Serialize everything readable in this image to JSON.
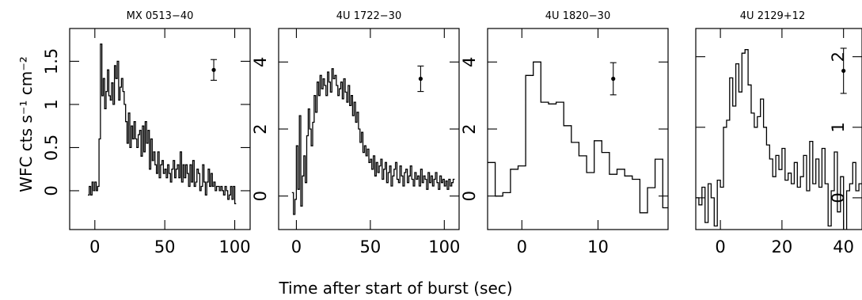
{
  "chart_data": {
    "type": "line",
    "step": true,
    "ylabel": "WFC cts s⁻¹ cm⁻²",
    "xlabel": "Time after start of burst (sec)",
    "panels": [
      {
        "title": "MX 0513−40",
        "xlim": [
          -18,
          111
        ],
        "ylim": [
          -0.45,
          1.88
        ],
        "xticks": [
          0,
          50,
          100
        ],
        "xtick_labels": [
          "0",
          "50",
          "100"
        ],
        "yticks": [
          0,
          0.5,
          1,
          1.5
        ],
        "ytick_labels": [
          "0",
          "0.5",
          "1",
          "1.5"
        ],
        "ytick_side": "left",
        "errbar": {
          "x": 85,
          "y": 1.4,
          "err": 0.12
        },
        "x": [
          -5,
          -4,
          -3,
          -2,
          -1,
          0,
          1,
          2,
          3,
          4,
          5,
          6,
          7,
          8,
          9,
          10,
          11,
          12,
          13,
          14,
          15,
          16,
          17,
          18,
          19,
          20,
          21,
          22,
          23,
          24,
          25,
          26,
          27,
          28,
          29,
          30,
          31,
          32,
          33,
          34,
          35,
          36,
          37,
          38,
          39,
          40,
          41,
          42,
          43,
          44,
          45,
          46,
          47,
          48,
          49,
          50,
          51,
          52,
          53,
          54,
          55,
          56,
          57,
          58,
          59,
          60,
          61,
          62,
          63,
          64,
          65,
          66,
          67,
          68,
          69,
          70,
          71,
          72,
          73,
          74,
          75,
          76,
          77,
          78,
          79,
          80,
          81,
          82,
          83,
          84,
          85,
          86,
          87,
          88,
          89,
          90,
          91,
          92,
          93,
          94,
          95,
          96,
          97,
          98,
          99,
          100
        ],
        "y": [
          -0.05,
          0.05,
          -0.05,
          0.1,
          0,
          0.1,
          0,
          0.05,
          0.6,
          1.7,
          1.1,
          1.3,
          0.95,
          1.15,
          1.4,
          1.1,
          1.05,
          1.25,
          1.0,
          1.45,
          1.3,
          1.5,
          1.05,
          1.2,
          1.3,
          1.15,
          1.0,
          0.8,
          0.55,
          0.9,
          0.5,
          0.75,
          0.6,
          0.8,
          0.6,
          0.5,
          0.65,
          0.7,
          0.4,
          0.75,
          0.45,
          0.8,
          0.55,
          0.7,
          0.25,
          0.6,
          0.35,
          0.45,
          0.3,
          0.2,
          0.45,
          0.15,
          0.3,
          0.35,
          0.2,
          0.25,
          0.15,
          0.3,
          0.2,
          0.1,
          0.25,
          0.35,
          0.15,
          0.25,
          0.3,
          0.15,
          0.45,
          0.1,
          0.3,
          0.15,
          0.3,
          0.2,
          0.05,
          0.3,
          0.1,
          0.35,
          0.05,
          0.1,
          0.25,
          0.2,
          0.0,
          0.05,
          0.3,
          0.1,
          -0.05,
          0.1,
          0.25,
          0.05,
          0.2,
          0.05,
          0.1,
          0.0,
          0.05,
          0.05,
          0.0,
          0.05,
          0.0,
          -0.05,
          0.05,
          0.0,
          -0.1,
          -0.05,
          0.05,
          -0.1,
          0.05,
          -0.15
        ]
      },
      {
        "title": "4U 1722−30",
        "xlim": [
          -12,
          110
        ],
        "ylim": [
          -1.0,
          5.0
        ],
        "xticks": [
          0,
          50,
          100
        ],
        "xtick_labels": [
          "0",
          "50",
          "100"
        ],
        "yticks": [
          0,
          2,
          4
        ],
        "ytick_labels": [
          "0",
          "2",
          "4"
        ],
        "ytick_side": "left",
        "errbar": {
          "x": 84,
          "y": 3.5,
          "err": 0.38
        },
        "x": [
          -3,
          -2,
          -1,
          0,
          1,
          2,
          3,
          4,
          5,
          6,
          7,
          8,
          9,
          10,
          11,
          12,
          13,
          14,
          15,
          16,
          17,
          18,
          19,
          20,
          21,
          22,
          23,
          24,
          25,
          26,
          27,
          28,
          29,
          30,
          31,
          32,
          33,
          34,
          35,
          36,
          37,
          38,
          39,
          40,
          41,
          42,
          43,
          44,
          45,
          46,
          47,
          48,
          49,
          50,
          51,
          52,
          53,
          54,
          55,
          56,
          57,
          58,
          59,
          60,
          61,
          62,
          63,
          64,
          65,
          66,
          67,
          68,
          69,
          70,
          71,
          72,
          73,
          74,
          75,
          76,
          77,
          78,
          79,
          80,
          81,
          82,
          83,
          84,
          85,
          86,
          87,
          88,
          89,
          90,
          91,
          92,
          93,
          94,
          95,
          96,
          97,
          98,
          99,
          100,
          101,
          102,
          103,
          104,
          105,
          106
        ],
        "y": [
          0.1,
          -0.55,
          -0.1,
          1.5,
          0.2,
          2.4,
          -0.3,
          0.6,
          1.2,
          0.4,
          1.8,
          2.6,
          2.0,
          1.5,
          2.2,
          3.0,
          2.5,
          3.4,
          3.0,
          3.6,
          3.2,
          3.5,
          3.3,
          3.0,
          3.7,
          3.4,
          3.1,
          3.8,
          3.5,
          3.6,
          3.3,
          3.0,
          3.2,
          3.4,
          2.9,
          3.5,
          3.1,
          2.8,
          3.3,
          2.7,
          3.0,
          2.4,
          2.8,
          2.2,
          2.5,
          2.0,
          1.6,
          1.9,
          1.3,
          1.5,
          1.2,
          1.4,
          1.0,
          1.1,
          0.8,
          1.2,
          0.6,
          1.0,
          0.7,
          0.9,
          1.1,
          0.5,
          0.8,
          1.0,
          0.4,
          0.7,
          0.9,
          0.3,
          0.6,
          0.8,
          1.0,
          0.5,
          0.4,
          0.9,
          0.6,
          0.3,
          0.7,
          0.8,
          0.4,
          0.6,
          0.9,
          0.5,
          0.3,
          0.7,
          0.5,
          0.6,
          0.3,
          0.8,
          0.4,
          0.6,
          0.5,
          0.2,
          0.7,
          0.4,
          0.6,
          0.3,
          0.5,
          0.7,
          0.4,
          0.2,
          0.6,
          0.4,
          0.5,
          0.3,
          0.45,
          0.2,
          0.5,
          0.3,
          0.4,
          0.5
        ]
      },
      {
        "title": "4U 1820−30",
        "xlim": [
          -4.5,
          19.2
        ],
        "ylim": [
          -1.0,
          5.0
        ],
        "xticks": [
          0,
          10
        ],
        "xtick_labels": [
          "0",
          "10"
        ],
        "yticks": [
          0,
          2,
          4
        ],
        "ytick_labels": [
          "0",
          "2",
          "4"
        ],
        "ytick_side": "left",
        "errbar": {
          "x": 12,
          "y": 3.5,
          "err": 0.48
        },
        "x": [
          -4.5,
          -3.5,
          -2.5,
          -1.5,
          -0.5,
          0.5,
          1.5,
          2.5,
          3.5,
          4.5,
          5.5,
          6.5,
          7.5,
          8.5,
          9.5,
          10.5,
          11.5,
          12.5,
          13.5,
          14.5,
          15.5,
          16.5,
          17.5,
          18.5
        ],
        "y": [
          1.0,
          0.0,
          0.1,
          0.8,
          0.9,
          3.6,
          4.0,
          2.8,
          2.75,
          2.8,
          2.1,
          1.6,
          1.2,
          0.7,
          1.65,
          1.3,
          0.65,
          0.8,
          0.6,
          0.5,
          -0.5,
          0.25,
          1.1,
          -0.35
        ]
      },
      {
        "title": "4U 2129+12",
        "xlim": [
          -8,
          46
        ],
        "ylim": [
          -0.45,
          2.4
        ],
        "xticks": [
          0,
          20,
          40
        ],
        "xtick_labels": [
          "0",
          "20",
          "40"
        ],
        "yticks": [
          0,
          1,
          2
        ],
        "ytick_labels": [
          "0",
          "1",
          "2"
        ],
        "ytick_side": "right",
        "errbar": {
          "x": 40,
          "y": 1.8,
          "err": 0.32
        },
        "x": [
          -8,
          -7,
          -6,
          -5,
          -4,
          -3,
          -2,
          -1,
          0,
          1,
          2,
          3,
          4,
          5,
          6,
          7,
          8,
          9,
          10,
          11,
          12,
          13,
          14,
          15,
          16,
          17,
          18,
          19,
          20,
          21,
          22,
          23,
          24,
          25,
          26,
          27,
          28,
          29,
          30,
          31,
          32,
          33,
          34,
          35,
          36,
          37,
          38,
          39,
          40,
          41,
          42,
          43,
          44,
          45
        ],
        "y": [
          0.0,
          -0.1,
          0.15,
          -0.35,
          0.2,
          0.0,
          -0.4,
          0.25,
          0.15,
          1.0,
          1.1,
          1.7,
          1.3,
          1.9,
          1.5,
          2.05,
          2.1,
          1.6,
          1.2,
          1.0,
          1.15,
          1.4,
          1.0,
          0.75,
          0.55,
          0.3,
          0.6,
          0.4,
          0.7,
          0.25,
          0.35,
          0.2,
          0.5,
          0.15,
          0.3,
          0.6,
          0.1,
          0.8,
          0.2,
          0.55,
          0.15,
          0.7,
          0.2,
          -0.4,
          0.1,
          0.65,
          -0.2,
          0.3,
          -0.5,
          0.1,
          0.2,
          0.5,
          0.1,
          0.2
        ]
      }
    ]
  }
}
